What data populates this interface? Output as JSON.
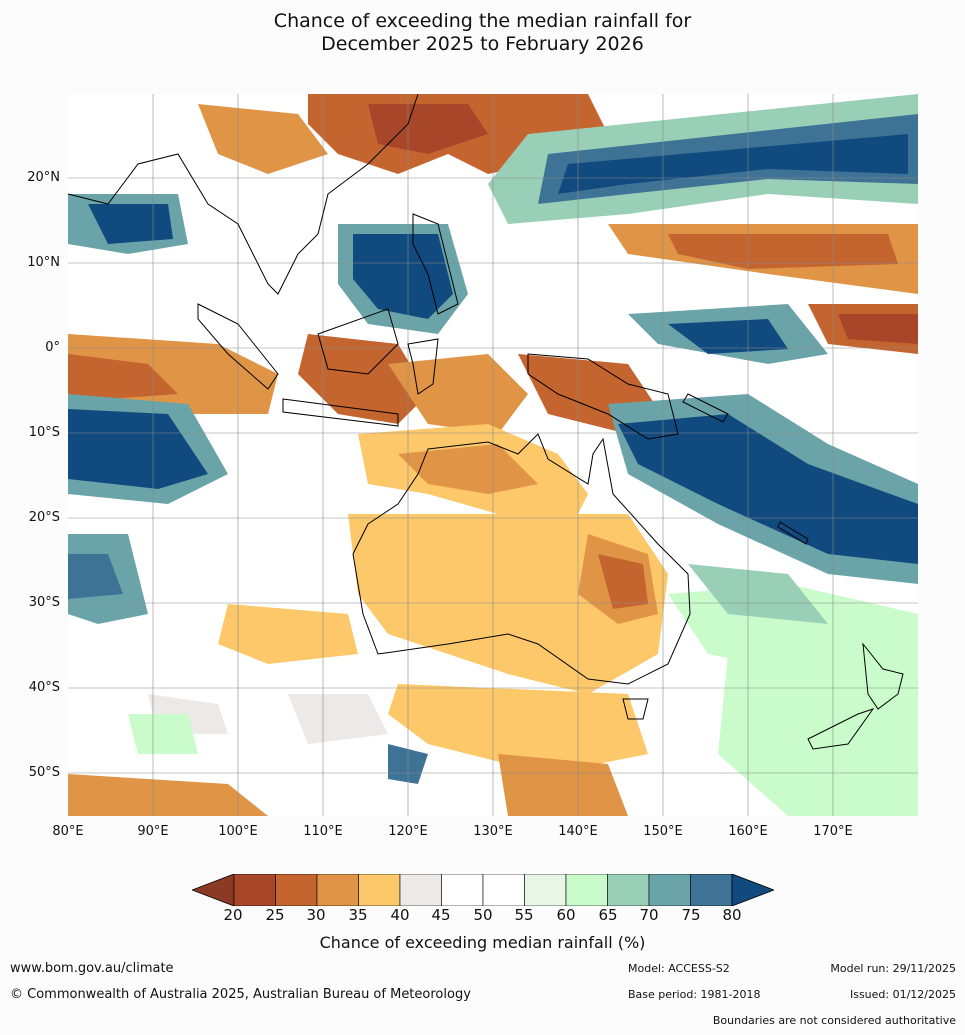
{
  "title_line1": "Chance of exceeding the median rainfall for",
  "title_line2": "December 2025 to February 2026",
  "map": {
    "lon_range": [
      "80°E",
      "180°E"
    ],
    "lat_range": [
      "30°N",
      "55°S"
    ],
    "lat_labels": [
      "20°N",
      "10°N",
      "0°",
      "10°S",
      "20°S",
      "30°S",
      "40°S",
      "50°S"
    ],
    "lon_labels": [
      "80°E",
      "90°E",
      "100°E",
      "110°E",
      "120°E",
      "130°E",
      "140°E",
      "150°E",
      "160°E",
      "170°E"
    ]
  },
  "colorbar": {
    "ticks": [
      "20",
      "25",
      "30",
      "35",
      "40",
      "45",
      "50",
      "55",
      "60",
      "65",
      "70",
      "75",
      "80"
    ],
    "colors": [
      "#a8462a",
      "#c4642f",
      "#df9446",
      "#fcc86a",
      "#ece9e6",
      "#ffffff",
      "#ffffff",
      "#e8f6e8",
      "#c9fcca",
      "#99cfb6",
      "#6aa4a8",
      "#3f7396"
    ],
    "low_extend_color": "#8b3a24",
    "high_extend_color": "#114a7e",
    "label": "Chance of exceeding median rainfall (%)"
  },
  "footer": {
    "website": "www.bom.gov.au/climate",
    "copyright": "© Commonwealth of Australia 2025, Australian Bureau of Meteorology",
    "model": "Model: ACCESS-S2",
    "base_period": "Base period: 1981-2018",
    "model_run": "Model run: 29/11/2025",
    "issued": "Issued: 01/12/2025",
    "disclaimer": "Boundaries are not considered authoritative"
  }
}
